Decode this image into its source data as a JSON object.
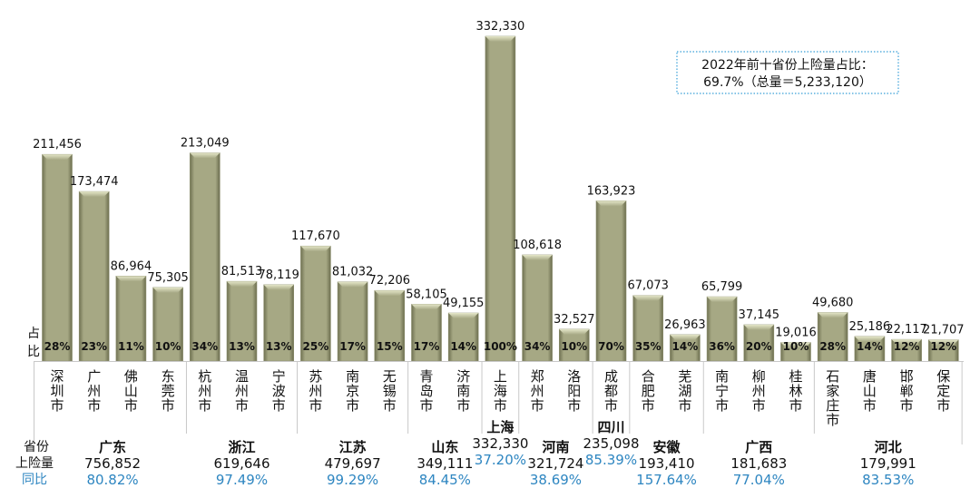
{
  "chart_data": {
    "type": "bar",
    "title": "",
    "ylim": [
      0,
      332330
    ],
    "bar_color": "#a4a682",
    "annotation": {
      "line1": "2022年前十省份上险量占比：",
      "line2": "69.7%（总量＝5,233,120）"
    },
    "side_labels": {
      "share": "占比",
      "province": "省份",
      "volume": "上险量",
      "yoy": "同比"
    },
    "cities": [
      {
        "name": "深圳市",
        "value": 211456,
        "label": "211,456",
        "share": "28%"
      },
      {
        "name": "广州市",
        "value": 173474,
        "label": "173,474",
        "share": "23%"
      },
      {
        "name": "佛山市",
        "value": 86964,
        "label": "86,964",
        "share": "11%"
      },
      {
        "name": "东莞市",
        "value": 75305,
        "label": "75,305",
        "share": "10%"
      },
      {
        "name": "杭州市",
        "value": 213049,
        "label": "213,049",
        "share": "34%"
      },
      {
        "name": "温州市",
        "value": 81513,
        "label": "81,513",
        "share": "13%"
      },
      {
        "name": "宁波市",
        "value": 78119,
        "label": "78,119",
        "share": "13%"
      },
      {
        "name": "苏州市",
        "value": 117670,
        "label": "117,670",
        "share": "25%"
      },
      {
        "name": "南京市",
        "value": 81032,
        "label": "81,032",
        "share": "17%"
      },
      {
        "name": "无锡市",
        "value": 72206,
        "label": "72,206",
        "share": "15%"
      },
      {
        "name": "青岛市",
        "value": 58105,
        "label": "58,105",
        "share": "17%"
      },
      {
        "name": "济南市",
        "value": 49155,
        "label": "49,155",
        "share": "14%"
      },
      {
        "name": "上海市",
        "value": 332330,
        "label": "332,330",
        "share": "100%"
      },
      {
        "name": "郑州市",
        "value": 108618,
        "label": "108,618",
        "share": "34%"
      },
      {
        "name": "洛阳市",
        "value": 32527,
        "label": "32,527",
        "share": "10%"
      },
      {
        "name": "成都市",
        "value": 163923,
        "label": "163,923",
        "share": "70%"
      },
      {
        "name": "合肥市",
        "value": 67073,
        "label": "67,073",
        "share": "35%"
      },
      {
        "name": "芜湖市",
        "value": 26963,
        "label": "26,963",
        "share": "14%"
      },
      {
        "name": "南宁市",
        "value": 65799,
        "label": "65,799",
        "share": "36%"
      },
      {
        "name": "柳州市",
        "value": 37145,
        "label": "37,145",
        "share": "20%"
      },
      {
        "name": "桂林市",
        "value": 19016,
        "label": "19,016",
        "share": "10%"
      },
      {
        "name": "石家庄市",
        "value": 49680,
        "label": "49,680",
        "share": "28%"
      },
      {
        "name": "唐山市",
        "value": 25186,
        "label": "25,186",
        "share": "14%"
      },
      {
        "name": "邯郸市",
        "value": 22117,
        "label": "22,117",
        "share": "12%"
      },
      {
        "name": "保定市",
        "value": 21707,
        "label": "21,707",
        "share": "12%"
      }
    ],
    "provinces": [
      {
        "name": "广东",
        "total": "756,852",
        "yoy": "80.82%",
        "count": 4,
        "raised": false
      },
      {
        "name": "浙江",
        "total": "619,646",
        "yoy": "97.49%",
        "count": 3,
        "raised": false
      },
      {
        "name": "江苏",
        "total": "479,697",
        "yoy": "99.29%",
        "count": 3,
        "raised": false
      },
      {
        "name": "山东",
        "total": "349,111",
        "yoy": "84.45%",
        "count": 2,
        "raised": false
      },
      {
        "name": "上海",
        "total": "332,330",
        "yoy": "37.20%",
        "count": 1,
        "raised": true
      },
      {
        "name": "河南",
        "total": "321,724",
        "yoy": "38.69%",
        "count": 2,
        "raised": false
      },
      {
        "name": "四川",
        "total": "235,098",
        "yoy": "85.39%",
        "count": 1,
        "raised": true
      },
      {
        "name": "安徽",
        "total": "193,410",
        "yoy": "157.64%",
        "count": 2,
        "raised": false
      },
      {
        "name": "广西",
        "total": "181,683",
        "yoy": "77.04%",
        "count": 3,
        "raised": false
      },
      {
        "name": "河北",
        "total": "179,991",
        "yoy": "83.53%",
        "count": 4,
        "raised": false
      }
    ]
  }
}
